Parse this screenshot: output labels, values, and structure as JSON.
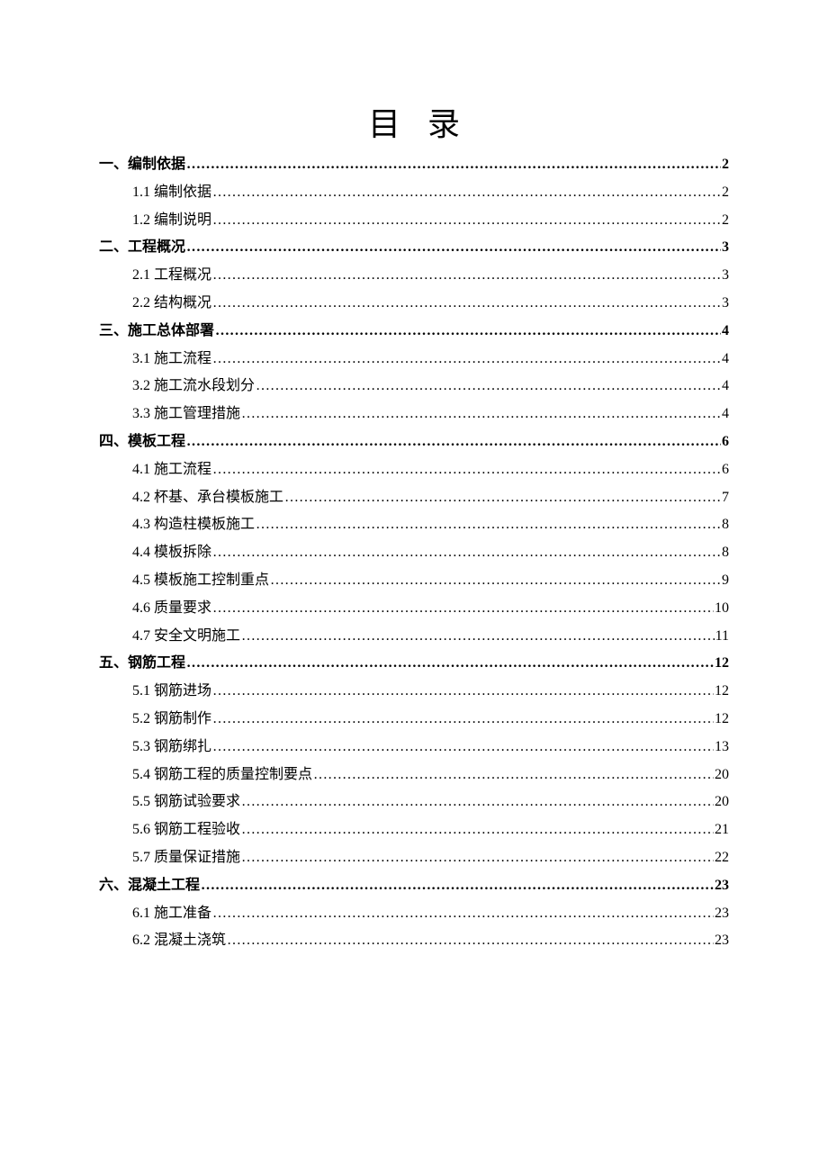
{
  "title": "目录",
  "entries": [
    {
      "level": 1,
      "label": "一、编制依据",
      "page": "2"
    },
    {
      "level": 2,
      "label": "1.1  编制依据",
      "page": "2"
    },
    {
      "level": 2,
      "label": "1.2  编制说明",
      "page": "2"
    },
    {
      "level": 1,
      "label": "二、工程概况",
      "page": "3"
    },
    {
      "level": 2,
      "label": "2.1  工程概况",
      "page": "3"
    },
    {
      "level": 2,
      "label": "2.2  结构概况",
      "page": "3"
    },
    {
      "level": 1,
      "label": "三、施工总体部署",
      "page": "4"
    },
    {
      "level": 2,
      "label": "3.1  施工流程",
      "page": "4"
    },
    {
      "level": 2,
      "label": "3.2  施工流水段划分",
      "page": "4"
    },
    {
      "level": 2,
      "label": "3.3  施工管理措施",
      "page": "4"
    },
    {
      "level": 1,
      "label": "四、模板工程",
      "page": "6"
    },
    {
      "level": 2,
      "label": "4.1  施工流程",
      "page": "6"
    },
    {
      "level": 2,
      "label": "4.2  杯基、承台模板施工",
      "page": "7"
    },
    {
      "level": 2,
      "label": "4.3  构造柱模板施工",
      "page": "8"
    },
    {
      "level": 2,
      "label": "4.4 模板拆除",
      "page": "8"
    },
    {
      "level": 2,
      "label": "4.5 模板施工控制重点",
      "page": "9"
    },
    {
      "level": 2,
      "label": "4.6  质量要求",
      "page": "10"
    },
    {
      "level": 2,
      "label": "4.7  安全文明施工",
      "page": "11"
    },
    {
      "level": 1,
      "label": "五、钢筋工程",
      "page": "12"
    },
    {
      "level": 2,
      "label": "5.1  钢筋进场",
      "page": "12"
    },
    {
      "level": 2,
      "label": "5.2  钢筋制作",
      "page": "12"
    },
    {
      "level": 2,
      "label": "5.3  钢筋绑扎",
      "page": "13"
    },
    {
      "level": 2,
      "label": "5.4 钢筋工程的质量控制要点",
      "page": "20"
    },
    {
      "level": 2,
      "label": "5.5  钢筋试验要求",
      "page": "20"
    },
    {
      "level": 2,
      "label": "5.6  钢筋工程验收",
      "page": "21"
    },
    {
      "level": 2,
      "label": "5.7  质量保证措施",
      "page": "22"
    },
    {
      "level": 1,
      "label": "六、混凝土工程",
      "page": "23"
    },
    {
      "level": 2,
      "label": "6.1  施工准备",
      "page": "23"
    },
    {
      "level": 2,
      "label": "6.2  混凝土浇筑",
      "page": "23"
    }
  ]
}
